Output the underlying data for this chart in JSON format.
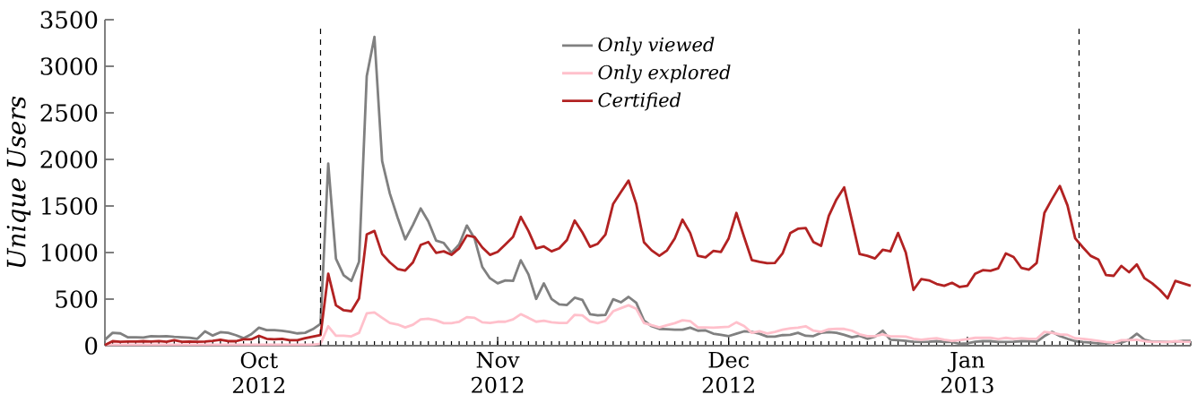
{
  "chart_data": {
    "type": "line",
    "ylabel": "Unique Users",
    "x": [
      "2012-09-11",
      "2012-09-12",
      "2012-09-13",
      "2012-09-14",
      "2012-09-15",
      "2012-09-16",
      "2012-09-17",
      "2012-09-18",
      "2012-09-19",
      "2012-09-20",
      "2012-09-21",
      "2012-09-22",
      "2012-09-23",
      "2012-09-24",
      "2012-09-25",
      "2012-09-26",
      "2012-09-27",
      "2012-09-28",
      "2012-09-29",
      "2012-09-30",
      "2012-10-01",
      "2012-10-02",
      "2012-10-03",
      "2012-10-04",
      "2012-10-05",
      "2012-10-06",
      "2012-10-07",
      "2012-10-08",
      "2012-10-09",
      "2012-10-10",
      "2012-10-11",
      "2012-10-12",
      "2012-10-13",
      "2012-10-14",
      "2012-10-15",
      "2012-10-16",
      "2012-10-17",
      "2012-10-18",
      "2012-10-19",
      "2012-10-20",
      "2012-10-21",
      "2012-10-22",
      "2012-10-23",
      "2012-10-24",
      "2012-10-25",
      "2012-10-26",
      "2012-10-27",
      "2012-10-28",
      "2012-10-29",
      "2012-10-30",
      "2012-10-31",
      "2012-11-01",
      "2012-11-02",
      "2012-11-03",
      "2012-11-04",
      "2012-11-05",
      "2012-11-06",
      "2012-11-07",
      "2012-11-08",
      "2012-11-09",
      "2012-11-10",
      "2012-11-11",
      "2012-11-12",
      "2012-11-13",
      "2012-11-14",
      "2012-11-15",
      "2012-11-16",
      "2012-11-17",
      "2012-11-18",
      "2012-11-19",
      "2012-11-20",
      "2012-11-21",
      "2012-11-22",
      "2012-11-23",
      "2012-11-24",
      "2012-11-25",
      "2012-11-26",
      "2012-11-27",
      "2012-11-28",
      "2012-11-29",
      "2012-11-30",
      "2012-12-01",
      "2012-12-02",
      "2012-12-03",
      "2012-12-04",
      "2012-12-05",
      "2012-12-06",
      "2012-12-07",
      "2012-12-08",
      "2012-12-09",
      "2012-12-10",
      "2012-12-11",
      "2012-12-12",
      "2012-12-13",
      "2012-12-14",
      "2012-12-15",
      "2012-12-16",
      "2012-12-17",
      "2012-12-18",
      "2012-12-19",
      "2012-12-20",
      "2012-12-21",
      "2012-12-22",
      "2012-12-23",
      "2012-12-24",
      "2012-12-25",
      "2012-12-26",
      "2012-12-27",
      "2012-12-28",
      "2012-12-29",
      "2012-12-30",
      "2012-12-31",
      "2013-01-01",
      "2013-01-02",
      "2013-01-03",
      "2013-01-04",
      "2013-01-05",
      "2013-01-06",
      "2013-01-07",
      "2013-01-08",
      "2013-01-09",
      "2013-01-10",
      "2013-01-11",
      "2013-01-12",
      "2013-01-13",
      "2013-01-14",
      "2013-01-15",
      "2013-01-16",
      "2013-01-17",
      "2013-01-18",
      "2013-01-19",
      "2013-01-20",
      "2013-01-21",
      "2013-01-22",
      "2013-01-23",
      "2013-01-24",
      "2013-01-25",
      "2013-01-26",
      "2013-01-27",
      "2013-01-28",
      "2013-01-29",
      "2013-01-30"
    ],
    "series": [
      {
        "name": "Only viewed",
        "color": "#808080",
        "values": [
          64,
          138,
          132,
          90,
          90,
          87,
          103,
          100,
          103,
          95,
          90,
          85,
          74,
          154,
          109,
          145,
          138,
          113,
          80,
          122,
          193,
          167,
          167,
          160,
          148,
          132,
          138,
          177,
          235,
          1956,
          933,
          756,
          695,
          901,
          2895,
          3315,
          1982,
          1634,
          1377,
          1142,
          1296,
          1473,
          1335,
          1129,
          1103,
          997,
          1087,
          1290,
          1152,
          846,
          724,
          669,
          701,
          695,
          917,
          766,
          502,
          669,
          502,
          444,
          437,
          515,
          492,
          338,
          325,
          331,
          499,
          466,
          524,
          460,
          270,
          209,
          180,
          177,
          171,
          171,
          193,
          161,
          164,
          129,
          116,
          103,
          129,
          154,
          148,
          129,
          97,
          97,
          113,
          116,
          138,
          106,
          103,
          138,
          145,
          138,
          116,
          90,
          106,
          74,
          97,
          161,
          64,
          58,
          51,
          42,
          39,
          42,
          48,
          39,
          39,
          19,
          26,
          42,
          48,
          48,
          39,
          39,
          42,
          48,
          48,
          42,
          103,
          148,
          103,
          74,
          48,
          39,
          32,
          26,
          26,
          32,
          32,
          64,
          129,
          64,
          42,
          42,
          39,
          42,
          51,
          51
        ]
      },
      {
        "name": "Only explored",
        "color": "#ffc0cb",
        "values": [
          10,
          10,
          10,
          10,
          10,
          10,
          10,
          10,
          10,
          10,
          10,
          10,
          10,
          10,
          10,
          10,
          10,
          10,
          10,
          10,
          10,
          10,
          10,
          10,
          10,
          10,
          10,
          10,
          20,
          209,
          106,
          106,
          100,
          138,
          347,
          357,
          299,
          244,
          228,
          196,
          225,
          283,
          290,
          273,
          241,
          241,
          257,
          306,
          299,
          251,
          244,
          257,
          257,
          283,
          338,
          299,
          257,
          267,
          251,
          244,
          244,
          331,
          325,
          261,
          241,
          267,
          370,
          402,
          434,
          396,
          244,
          219,
          196,
          219,
          241,
          273,
          264,
          196,
          196,
          193,
          199,
          203,
          251,
          212,
          138,
          154,
          132,
          148,
          171,
          187,
          193,
          209,
          161,
          148,
          177,
          180,
          180,
          161,
          122,
          103,
          103,
          122,
          100,
          100,
          97,
          74,
          64,
          74,
          80,
          64,
          51,
          58,
          71,
          84,
          84,
          84,
          71,
          84,
          74,
          80,
          74,
          74,
          148,
          138,
          122,
          116,
          80,
          74,
          64,
          51,
          39,
          32,
          58,
          58,
          64,
          48,
          39,
          39,
          39,
          48,
          42,
          39
        ]
      },
      {
        "name": "Certified",
        "color": "#b22222",
        "values": [
          6,
          48,
          42,
          45,
          45,
          48,
          45,
          50,
          42,
          58,
          42,
          45,
          42,
          45,
          51,
          64,
          48,
          48,
          68,
          68,
          106,
          74,
          68,
          74,
          58,
          58,
          80,
          97,
          113,
          772,
          434,
          380,
          370,
          508,
          1194,
          1232,
          984,
          894,
          824,
          807,
          894,
          1081,
          1113,
          997,
          1013,
          975,
          1045,
          1184,
          1168,
          1055,
          975,
          1007,
          1087,
          1168,
          1383,
          1232,
          1045,
          1065,
          1013,
          1045,
          1135,
          1344,
          1216,
          1061,
          1094,
          1193,
          1522,
          1650,
          1773,
          1522,
          1110,
          1023,
          965,
          1023,
          1152,
          1354,
          1210,
          965,
          949,
          1017,
          1007,
          1152,
          1425,
          1168,
          920,
          901,
          885,
          888,
          991,
          1210,
          1255,
          1264,
          1113,
          1071,
          1393,
          1570,
          1699,
          1345,
          984,
          965,
          936,
          1029,
          1013,
          1210,
          1000,
          598,
          714,
          701,
          663,
          643,
          675,
          630,
          643,
          772,
          811,
          804,
          830,
          991,
          952,
          836,
          817,
          888,
          1425,
          1576,
          1715,
          1506,
          1152,
          1055,
          965,
          926,
          759,
          750,
          856,
          788,
          872,
          724,
          669,
          598,
          508,
          695,
          669,
          643
        ]
      }
    ],
    "xlim": [
      "2012-09-11",
      "2013-01-30"
    ],
    "xticks": [
      {
        "value": "2012-10-01",
        "label": "Oct 2012"
      },
      {
        "value": "2012-11-01",
        "label": "Nov 2012"
      },
      {
        "value": "2012-12-01",
        "label": "Dec 2012"
      },
      {
        "value": "2013-01-01",
        "label": "Jan 2013"
      }
    ],
    "ylim": [
      0,
      3500
    ],
    "yticks": [
      0,
      500,
      1000,
      1500,
      2000,
      2500,
      3000,
      3500
    ],
    "ref_lines": [
      {
        "axis": "x",
        "value": "2012-10-09",
        "color": "#000000",
        "line_style": "dashed"
      },
      {
        "axis": "x",
        "value": "2013-01-15T12:00",
        "color": "#000000",
        "line_style": "dashed"
      }
    ],
    "legend": "top"
  }
}
